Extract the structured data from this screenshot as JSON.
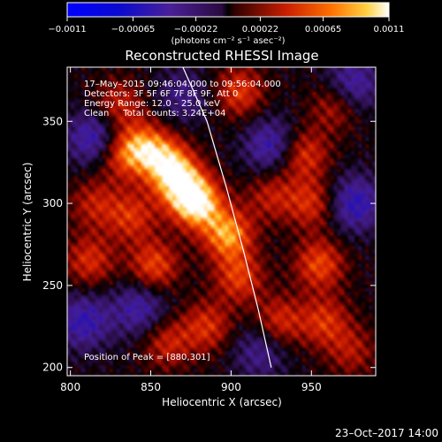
{
  "chart_data": {
    "type": "heatmap",
    "title": "Reconstructed RHESSI Image",
    "xlabel": "Heliocentric X (arcsec)",
    "ylabel": "Heliocentric Y (arcsec)",
    "xlim": [
      798,
      990
    ],
    "ylim": [
      195,
      383
    ],
    "x_ticks": [
      {
        "value": 800,
        "label": "800"
      },
      {
        "value": 850,
        "label": "850"
      },
      {
        "value": 900,
        "label": "900"
      },
      {
        "value": 950,
        "label": "950"
      }
    ],
    "y_ticks": [
      {
        "value": 200,
        "label": "200"
      },
      {
        "value": 250,
        "label": "250"
      },
      {
        "value": 300,
        "label": "300"
      },
      {
        "value": 350,
        "label": "350"
      }
    ],
    "colorbar": {
      "range": [
        -0.0011,
        0.0011
      ],
      "unit_label": "(photons cm⁻² s⁻¹ asec⁻²)",
      "ticks": [
        {
          "value": -0.0011,
          "label": "−0.0011"
        },
        {
          "value": -0.00065,
          "label": "−0.00065"
        },
        {
          "value": -0.00022,
          "label": "−0.00022"
        },
        {
          "value": 0.00022,
          "label": "0.00022"
        },
        {
          "value": 0.00065,
          "label": "0.00065"
        },
        {
          "value": 0.0011,
          "label": "0.0011"
        }
      ]
    },
    "annotations": [
      "17–May–2015 09:46:04.000 to 09:56:04.000",
      "Detectors: 3F 5F 6F 7F 8F 9F, Att 0",
      "Energy Range: 12.0 – 25.0 keV",
      "Clean     Total counts: 3.24E+04"
    ],
    "peak_label": "Position of Peak = [880,301]",
    "peak": [
      880,
      301
    ],
    "limb_curve": [
      [
        870,
        383
      ],
      [
        885,
        350
      ],
      [
        897,
        310
      ],
      [
        908,
        270
      ],
      [
        917,
        235
      ],
      [
        925,
        200
      ]
    ],
    "sources": [
      {
        "x": 879,
        "y": 300,
        "strength": 1.0
      },
      {
        "x": 898,
        "y": 281,
        "strength": 0.8
      },
      {
        "x": 868,
        "y": 312,
        "strength": 0.75
      },
      {
        "x": 860,
        "y": 325,
        "strength": 0.7
      },
      {
        "x": 846,
        "y": 335,
        "strength": 0.6
      },
      {
        "x": 832,
        "y": 330,
        "strength": 0.55
      },
      {
        "x": 852,
        "y": 262,
        "strength": 0.6
      },
      {
        "x": 838,
        "y": 292,
        "strength": 0.5
      },
      {
        "x": 812,
        "y": 265,
        "strength": 0.5
      },
      {
        "x": 815,
        "y": 300,
        "strength": 0.4
      },
      {
        "x": 885,
        "y": 225,
        "strength": 0.5
      },
      {
        "x": 860,
        "y": 215,
        "strength": 0.45
      },
      {
        "x": 905,
        "y": 255,
        "strength": 0.55
      },
      {
        "x": 945,
        "y": 330,
        "strength": 0.55
      },
      {
        "x": 950,
        "y": 300,
        "strength": 0.5
      },
      {
        "x": 955,
        "y": 263,
        "strength": 0.6
      },
      {
        "x": 930,
        "y": 228,
        "strength": 0.5
      },
      {
        "x": 958,
        "y": 228,
        "strength": 0.5
      },
      {
        "x": 905,
        "y": 368,
        "strength": 0.55
      },
      {
        "x": 965,
        "y": 360,
        "strength": 0.45
      },
      {
        "x": 830,
        "y": 360,
        "strength": 0.45
      },
      {
        "x": 925,
        "y": 305,
        "strength": 0.4
      },
      {
        "x": 975,
        "y": 210,
        "strength": 0.35
      }
    ],
    "negatives": [
      {
        "x": 815,
        "y": 340,
        "strength": 0.6
      },
      {
        "x": 808,
        "y": 228,
        "strength": 0.55
      },
      {
        "x": 843,
        "y": 236,
        "strength": 0.5
      },
      {
        "x": 925,
        "y": 335,
        "strength": 0.55
      },
      {
        "x": 977,
        "y": 300,
        "strength": 0.6
      },
      {
        "x": 975,
        "y": 372,
        "strength": 0.55
      },
      {
        "x": 918,
        "y": 210,
        "strength": 0.4
      },
      {
        "x": 870,
        "y": 365,
        "strength": 0.35
      }
    ]
  },
  "footer_date": "23–Oct–2017 14:00"
}
